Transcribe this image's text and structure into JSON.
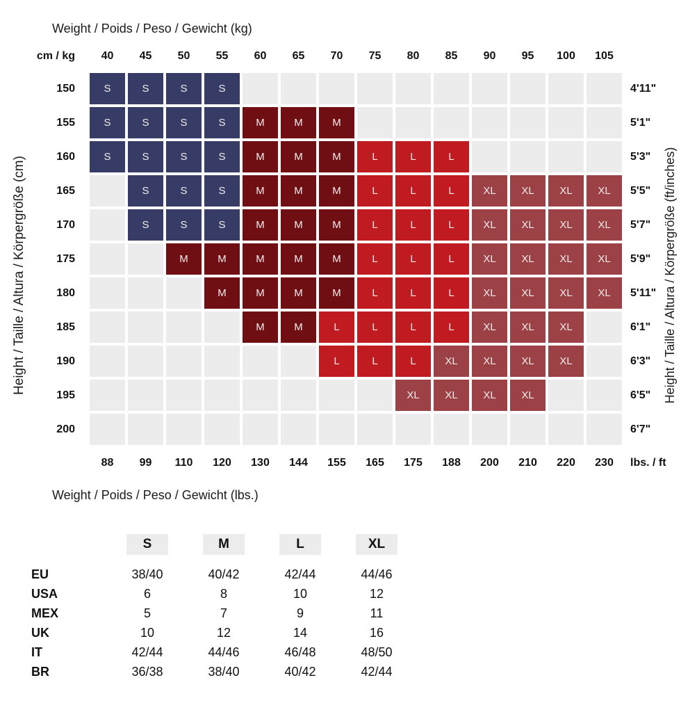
{
  "chart_data": {
    "type": "heatmap",
    "top_axis_title": "Weight / Poids / Peso / Gewicht (kg)",
    "bottom_axis_title": "Weight / Poids / Peso / Gewicht (lbs.)",
    "left_axis_title": "Height / Taille / Altura / Körpergröße (cm)",
    "right_axis_title": "Height / Taille / Altura / Körpergröße (ft/inches)",
    "top_corner_label": "cm / kg",
    "bottom_corner_label": "lbs. / ft",
    "columns_kg": [
      "40",
      "45",
      "50",
      "55",
      "60",
      "65",
      "70",
      "75",
      "80",
      "85",
      "90",
      "95",
      "100",
      "105"
    ],
    "columns_lbs": [
      "88",
      "99",
      "110",
      "120",
      "130",
      "144",
      "155",
      "165",
      "175",
      "188",
      "200",
      "210",
      "220",
      "230"
    ],
    "rows": [
      {
        "cm": "150",
        "ft": "4'11\"",
        "cells": [
          "S",
          "S",
          "S",
          "S",
          "",
          "",
          "",
          "",
          "",
          "",
          "",
          "",
          "",
          ""
        ]
      },
      {
        "cm": "155",
        "ft": "5'1\"",
        "cells": [
          "S",
          "S",
          "S",
          "S",
          "M",
          "M",
          "M",
          "",
          "",
          "",
          "",
          "",
          "",
          ""
        ]
      },
      {
        "cm": "160",
        "ft": "5'3\"",
        "cells": [
          "S",
          "S",
          "S",
          "S",
          "M",
          "M",
          "M",
          "L",
          "L",
          "L",
          "",
          "",
          "",
          ""
        ]
      },
      {
        "cm": "165",
        "ft": "5'5\"",
        "cells": [
          "",
          "S",
          "S",
          "S",
          "M",
          "M",
          "M",
          "L",
          "L",
          "L",
          "XL",
          "XL",
          "XL",
          "XL"
        ]
      },
      {
        "cm": "170",
        "ft": "5'7\"",
        "cells": [
          "",
          "S",
          "S",
          "S",
          "M",
          "M",
          "M",
          "L",
          "L",
          "L",
          "XL",
          "XL",
          "XL",
          "XL"
        ]
      },
      {
        "cm": "175",
        "ft": "5'9\"",
        "cells": [
          "",
          "",
          "M",
          "M",
          "M",
          "M",
          "M",
          "L",
          "L",
          "L",
          "XL",
          "XL",
          "XL",
          "XL"
        ]
      },
      {
        "cm": "180",
        "ft": "5'11\"",
        "cells": [
          "",
          "",
          "",
          "M",
          "M",
          "M",
          "M",
          "L",
          "L",
          "L",
          "XL",
          "XL",
          "XL",
          "XL"
        ]
      },
      {
        "cm": "185",
        "ft": "6'1\"",
        "cells": [
          "",
          "",
          "",
          "",
          "M",
          "M",
          "L",
          "L",
          "L",
          "L",
          "XL",
          "XL",
          "XL",
          ""
        ]
      },
      {
        "cm": "190",
        "ft": "6'3\"",
        "cells": [
          "",
          "",
          "",
          "",
          "",
          "",
          "L",
          "L",
          "L",
          "XL",
          "XL",
          "XL",
          "XL",
          ""
        ]
      },
      {
        "cm": "195",
        "ft": "6'5\"",
        "cells": [
          "",
          "",
          "",
          "",
          "",
          "",
          "",
          "",
          "XL",
          "XL",
          "XL",
          "XL",
          "",
          ""
        ]
      },
      {
        "cm": "200",
        "ft": "6'7\"",
        "cells": [
          "",
          "",
          "",
          "",
          "",
          "",
          "",
          "",
          "",
          "",
          "",
          "",
          "",
          ""
        ]
      }
    ],
    "colors": {
      "S": "#363c65",
      "M": "#6f0e13",
      "L": "#c01b21",
      "XL": "#9c4146",
      "empty": "#ececec",
      "cell_text": "#f2ecec"
    }
  },
  "conversion_table": {
    "header_sizes": [
      "S",
      "M",
      "L",
      "XL"
    ],
    "rows": [
      {
        "label": "EU",
        "values": [
          "38/40",
          "40/42",
          "42/44",
          "44/46"
        ]
      },
      {
        "label": "USA",
        "values": [
          "6",
          "8",
          "10",
          "12"
        ]
      },
      {
        "label": "MEX",
        "values": [
          "5",
          "7",
          "9",
          "11"
        ]
      },
      {
        "label": "UK",
        "values": [
          "10",
          "12",
          "14",
          "16"
        ]
      },
      {
        "label": "IT",
        "values": [
          "42/44",
          "44/46",
          "46/48",
          "48/50"
        ]
      },
      {
        "label": "BR",
        "values": [
          "36/38",
          "38/40",
          "40/42",
          "42/44"
        ]
      }
    ]
  }
}
